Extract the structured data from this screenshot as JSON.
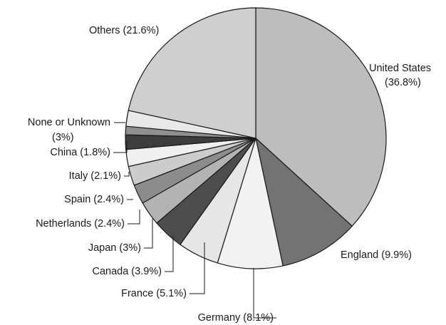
{
  "chart_data": {
    "type": "pie",
    "title": "",
    "slices": [
      {
        "name": "United States",
        "value": 36.8,
        "label_lines": [
          "United States",
          "(36.8%)"
        ],
        "color": "#bdbdbd"
      },
      {
        "name": "England",
        "value": 9.9,
        "label_lines": [
          "England (9.9%)"
        ],
        "color": "#737373"
      },
      {
        "name": "Germany",
        "value": 8.1,
        "label_lines": [
          "Germany (8.1%)"
        ],
        "color": "#f2f2f2"
      },
      {
        "name": "France",
        "value": 5.1,
        "label_lines": [
          "France (5.1%)"
        ],
        "color": "#e6e6e6"
      },
      {
        "name": "Canada",
        "value": 3.9,
        "label_lines": [
          "Canada (3.9%)"
        ],
        "color": "#4d4d4d"
      },
      {
        "name": "Japan",
        "value": 3.0,
        "label_lines": [
          "Japan (3%)"
        ],
        "color": "#b3b3b3"
      },
      {
        "name": "Netherlands",
        "value": 2.4,
        "label_lines": [
          "Netherlands (2.4%)"
        ],
        "color": "#8c8c8c"
      },
      {
        "name": "Spain",
        "value": 2.4,
        "label_lines": [
          "Spain (2.4%)"
        ],
        "color": "#cccccc"
      },
      {
        "name": "Italy",
        "value": 2.1,
        "label_lines": [
          "Italy (2.1%)"
        ],
        "color": "#f0f0f0"
      },
      {
        "name": "China",
        "value": 1.8,
        "label_lines": [
          "China (1.8%)"
        ],
        "color": "#3d3d3d"
      },
      {
        "name": "None or Unknown",
        "value": 3.0,
        "label_lines": [
          "None or Unknown",
          "(3%)"
        ],
        "color": "#8f8f8f"
      },
      {
        "name": "Others",
        "value": 21.6,
        "label_lines": [
          "Others (21.6%)"
        ],
        "color": "#cfcfcf"
      }
    ],
    "extra_colors": {
      "none_or_unknown_upper_band": "#e8e8e8"
    },
    "start_angle": "12 o'clock",
    "direction": "clockwise",
    "legend": "none"
  }
}
